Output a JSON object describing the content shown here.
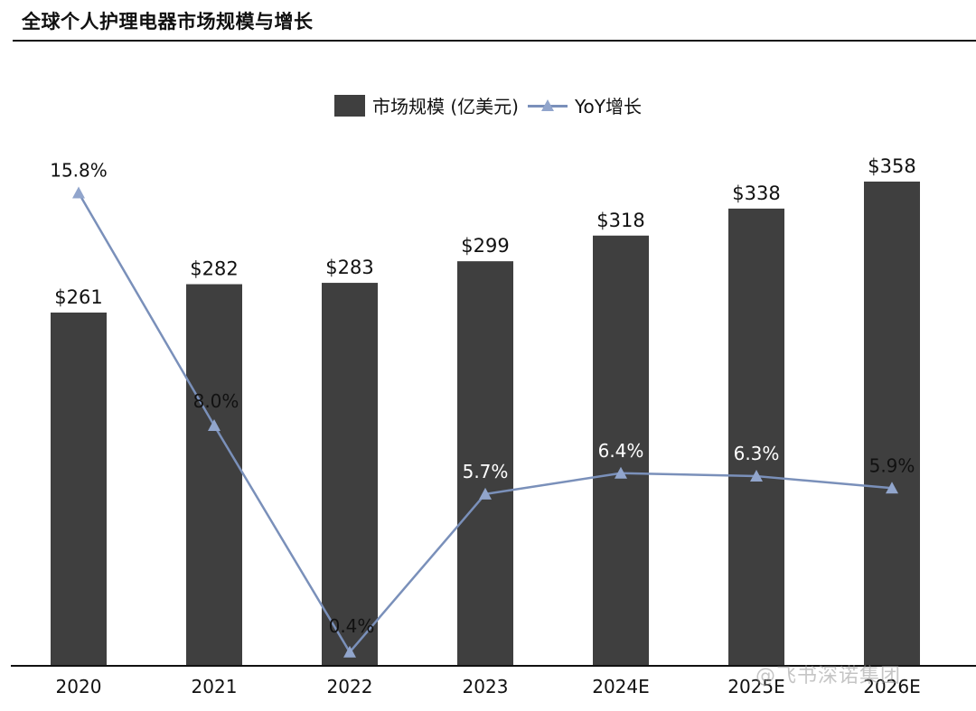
{
  "page": {
    "title": "全球个人护理电器市场规模与增长",
    "watermark": "@飞书深诺集团"
  },
  "colors": {
    "bar": "#3f3f3f",
    "line": "#7a90ba",
    "marker": "#91a5cc",
    "axis": "#111111"
  },
  "chart_data": {
    "type": "bar",
    "title": "",
    "xlabel": "",
    "ylabel": "",
    "categories": [
      "2020",
      "2021",
      "2022",
      "2023",
      "2024E",
      "2025E",
      "2026E"
    ],
    "ylim": [
      0,
      360
    ],
    "y2lim": [
      0,
      16.3
    ],
    "legend_position": "top-center",
    "grid": false,
    "series": [
      {
        "name": "市场规模 (亿美元)",
        "type": "bar",
        "axis": "left",
        "values": [
          261,
          282,
          283,
          299,
          318,
          338,
          358
        ],
        "labels": [
          "$261",
          "$282",
          "$283",
          "$299",
          "$318",
          "$338",
          "$358"
        ]
      },
      {
        "name": "YoY增长",
        "type": "line",
        "axis": "right",
        "marker": "triangle",
        "values": [
          15.8,
          8.0,
          0.4,
          5.7,
          6.4,
          6.3,
          5.9
        ],
        "labels": [
          "15.8%",
          "8.0%",
          "0.4%",
          "5.7%",
          "6.4%",
          "6.3%",
          "5.9%"
        ]
      }
    ]
  }
}
